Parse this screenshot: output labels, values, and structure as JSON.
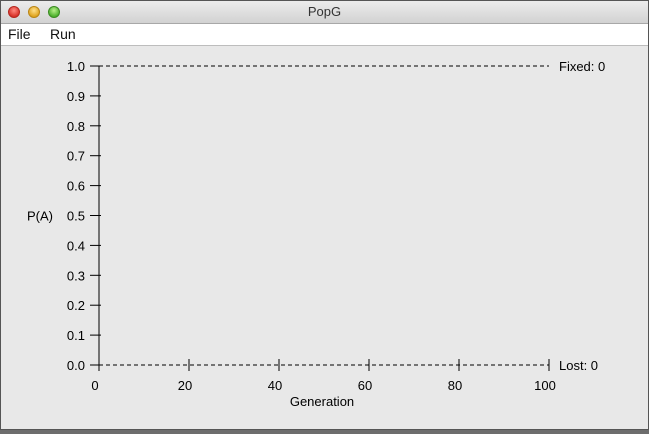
{
  "window": {
    "title": "PopG"
  },
  "menu": {
    "file": "File",
    "run": "Run"
  },
  "chart_data": {
    "type": "line",
    "title": "",
    "xlabel": "Generation",
    "ylabel": "P(A)",
    "xlim": [
      0,
      100
    ],
    "ylim": [
      0.0,
      1.0
    ],
    "x_ticks": [
      0,
      20,
      40,
      60,
      80,
      100
    ],
    "y_ticks": [
      0.0,
      0.1,
      0.2,
      0.3,
      0.4,
      0.5,
      0.6,
      0.7,
      0.8,
      0.9,
      1.0
    ],
    "y_tick_labels": [
      "0.0",
      "0.1",
      "0.2",
      "0.3",
      "0.4",
      "0.5",
      "0.6",
      "0.7",
      "0.8",
      "0.9",
      "1.0"
    ],
    "series": [],
    "annotations": {
      "fixed": "Fixed: 0",
      "lost": "Lost: 0"
    },
    "grid": false,
    "dashed_reference_lines": [
      1.0,
      0.0
    ]
  }
}
